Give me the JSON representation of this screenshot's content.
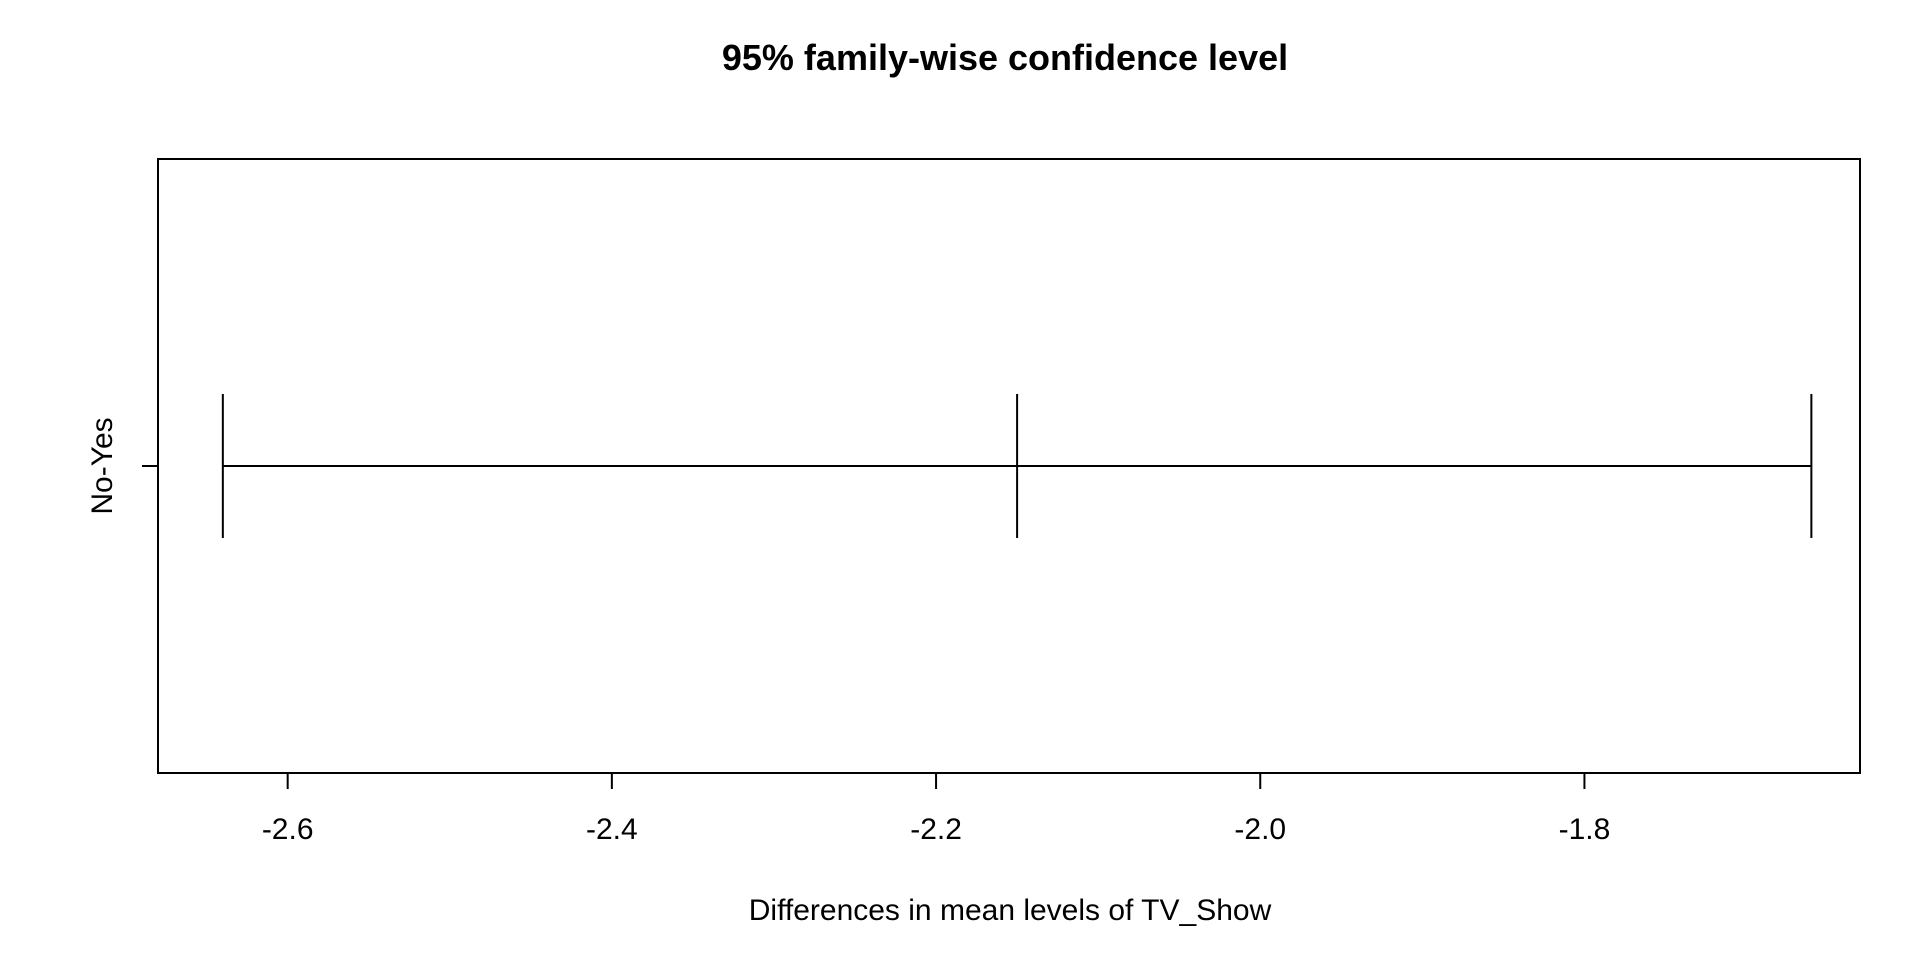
{
  "chart_data": {
    "type": "interval",
    "title": "95% family-wise confidence level",
    "xlabel": "Differences in mean levels of TV_Show",
    "ylabel": "",
    "xlim": [
      -2.68,
      -1.63
    ],
    "x_ticks": [
      -2.6,
      -2.4,
      -2.2,
      -2.0,
      -1.8
    ],
    "x_tick_labels": [
      "-2.6",
      "-2.4",
      "-2.2",
      "-2.0",
      "-1.8"
    ],
    "categories": [
      "No-Yes"
    ],
    "intervals": [
      {
        "label": "No-Yes",
        "lwr": -2.64,
        "diff": -2.15,
        "upr": -1.66
      }
    ],
    "reference_line": 0,
    "grid": false,
    "colors": {
      "line": "#000000",
      "reference": "#d3d3d3"
    }
  }
}
